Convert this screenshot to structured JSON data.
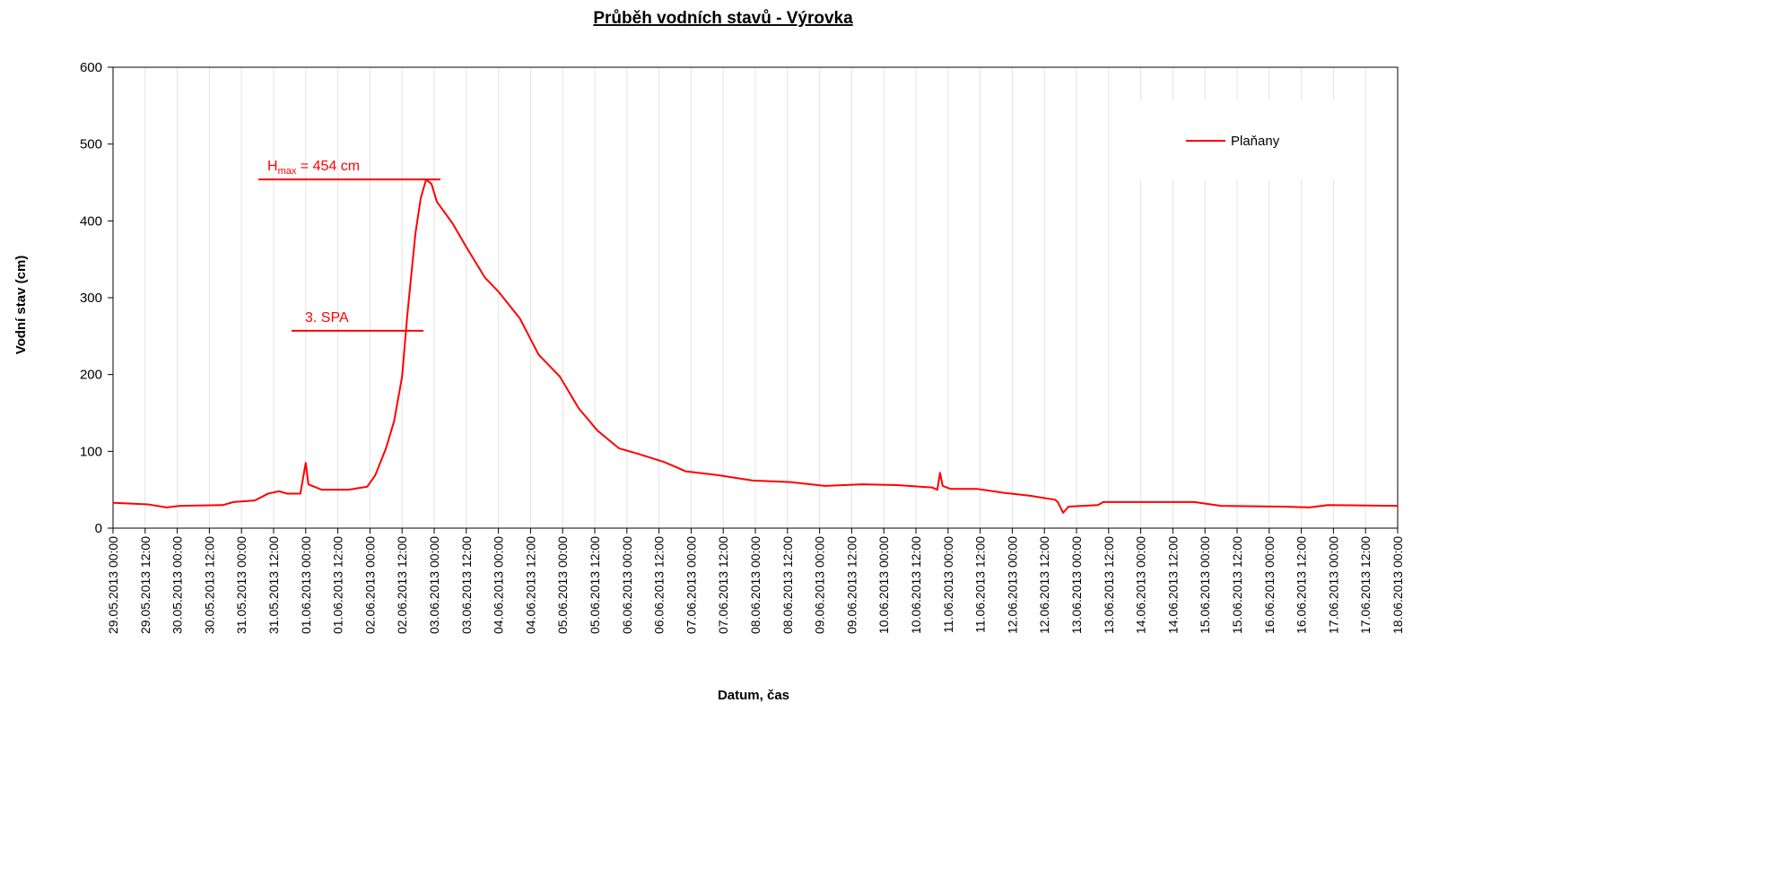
{
  "chart_data": {
    "type": "line",
    "title": "Průběh vodních stavů - Výrovka",
    "x_label": "Datum, čas",
    "y_label": "Vodní stav (cm)",
    "xlim": [
      "29.05.2013 00:00",
      "18.06.2013 00:00"
    ],
    "ylim": [
      0,
      600
    ],
    "yticks": [
      0,
      100,
      200,
      300,
      400,
      500,
      600
    ],
    "xticks": [
      "29.05.2013 00:00",
      "29.05.2013 12:00",
      "30.05.2013 00:00",
      "30.05.2013 12:00",
      "31.05.2013 00:00",
      "31.05.2013 12:00",
      "01.06.2013 00:00",
      "01.06.2013 12:00",
      "02.06.2013 00:00",
      "02.06.2013 12:00",
      "03.06.2013 00:00",
      "03.06.2013 12:00",
      "04.06.2013 00:00",
      "04.06.2013 12:00",
      "05.06.2013 00:00",
      "05.06.2013 12:00",
      "06.06.2013 00:00",
      "06.06.2013 12:00",
      "07.06.2013 00:00",
      "07.06.2013 12:00",
      "08.06.2013 00:00",
      "08.06.2013 12:00",
      "09.06.2013 00:00",
      "09.06.2013 12:00",
      "10.06.2013 00:00",
      "10.06.2013 12:00",
      "11.06.2013 00:00",
      "11.06.2013 12:00",
      "12.06.2013 00:00",
      "12.06.2013 12:00",
      "13.06.2013 00:00",
      "13.06.2013 12:00",
      "14.06.2013 00:00",
      "14.06.2013 12:00",
      "15.06.2013 00:00",
      "15.06.2013 12:00",
      "16.06.2013 00:00",
      "16.06.2013 12:00",
      "17.06.2013 00:00",
      "17.06.2013 12:00",
      "18.06.2013 00:00"
    ],
    "grid": true,
    "legend": "upper right",
    "x": [
      "29.05.2013 00:00",
      "29.05.2013 13:00",
      "29.05.2013 20:00",
      "30.05.2013 01:00",
      "30.05.2013 17:00",
      "30.05.2013 21:00",
      "31.05.2013 05:00",
      "31.05.2013 10:00",
      "31.05.2013 14:00",
      "31.05.2013 17:00",
      "31.05.2013 22:00",
      "01.06.2013 00:00",
      "01.06.2013 01:00",
      "01.06.2013 06:00",
      "01.06.2013 16:00",
      "01.06.2013 23:00",
      "02.06.2013 02:00",
      "02.06.2013 06:00",
      "02.06.2013 09:00",
      "02.06.2013 12:00",
      "02.06.2013 14:00",
      "02.06.2013 17:00",
      "02.06.2013 19:00",
      "02.06.2013 21:00",
      "02.06.2013 23:00",
      "03.06.2013 01:00",
      "03.06.2013 07:00",
      "03.06.2013 12:00",
      "03.06.2013 19:00",
      "04.06.2013 00:00",
      "04.06.2013 08:00",
      "04.06.2013 15:00",
      "04.06.2013 23:00",
      "05.06.2013 06:00",
      "05.06.2013 13:00",
      "05.06.2013 21:00",
      "06.06.2013 04:00",
      "06.06.2013 14:00",
      "06.06.2013 22:00",
      "07.06.2013 10:00",
      "07.06.2013 23:00",
      "08.06.2013 13:00",
      "09.06.2013 02:00",
      "09.06.2013 16:00",
      "10.06.2013 05:00",
      "10.06.2013 18:00",
      "10.06.2013 20:00",
      "10.06.2013 21:00",
      "10.06.2013 22:00",
      "11.06.2013 01:00",
      "11.06.2013 11:00",
      "11.06.2013 21:00",
      "12.06.2013 07:00",
      "12.06.2013 16:00",
      "12.06.2013 17:00",
      "12.06.2013 19:00",
      "12.06.2013 21:00",
      "13.06.2013 08:00",
      "13.06.2013 10:00",
      "14.06.2013 20:00",
      "15.06.2013 06:00",
      "16.06.2013 05:00",
      "16.06.2013 15:00",
      "16.06.2013 22:00",
      "18.06.2013 00:00"
    ],
    "series": [
      {
        "name": "Plaňany",
        "color": "#ff0000",
        "values": [
          33,
          31,
          27,
          29,
          30,
          34,
          36,
          45,
          48,
          45,
          45,
          85,
          57,
          50,
          50,
          54,
          69,
          104,
          139,
          197,
          279,
          384,
          430,
          454,
          448,
          425,
          396,
          366,
          326,
          308,
          273,
          226,
          197,
          156,
          127,
          104,
          97,
          86,
          74,
          69,
          62,
          60,
          55,
          57,
          56,
          53,
          50,
          72,
          55,
          51,
          51,
          46,
          42,
          37,
          34,
          20,
          28,
          30,
          34,
          34,
          29,
          28,
          27,
          30,
          29
        ]
      }
    ],
    "annotations": [
      {
        "text": "H",
        "sub": "max",
        "rest": " = 454 cm",
        "value": 454
      },
      {
        "text": "3. SPA",
        "value": 257
      }
    ]
  }
}
